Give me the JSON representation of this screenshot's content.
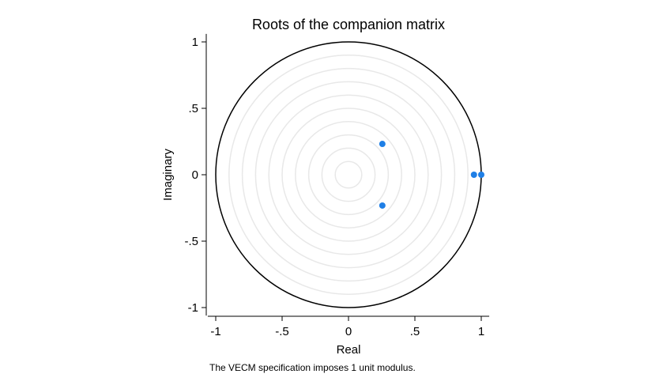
{
  "chart_data": {
    "type": "scatter",
    "title": "Roots of the companion matrix",
    "xlabel": "Real",
    "ylabel": "Imaginary",
    "note": "The VECM specification imposes 1 unit modulus.",
    "xlim": [
      -1,
      1
    ],
    "ylim": [
      -1,
      1
    ],
    "x_ticks": [
      -1,
      -0.5,
      0,
      0.5,
      1
    ],
    "x_tick_labels": [
      "-1",
      "-.5",
      "0",
      ".5",
      "1"
    ],
    "y_ticks": [
      -1,
      -0.5,
      0,
      0.5,
      1
    ],
    "y_tick_labels": [
      "-1",
      "-.5",
      "0",
      ".5",
      "1"
    ],
    "grid": true,
    "grid_circle_radii": [
      0.1,
      0.2,
      0.3,
      0.4,
      0.5,
      0.6,
      0.7,
      0.8,
      0.9
    ],
    "unit_circle_radius": 1,
    "point_color": "#1f7fe6",
    "grid_color": "#e8e8e8",
    "series": [
      {
        "points": [
          {
            "x": 0.255,
            "y": 0.232
          },
          {
            "x": 0.255,
            "y": -0.232
          },
          {
            "x": 0.945,
            "y": 0.0
          },
          {
            "x": 1.0,
            "y": 0.0
          }
        ]
      }
    ]
  }
}
